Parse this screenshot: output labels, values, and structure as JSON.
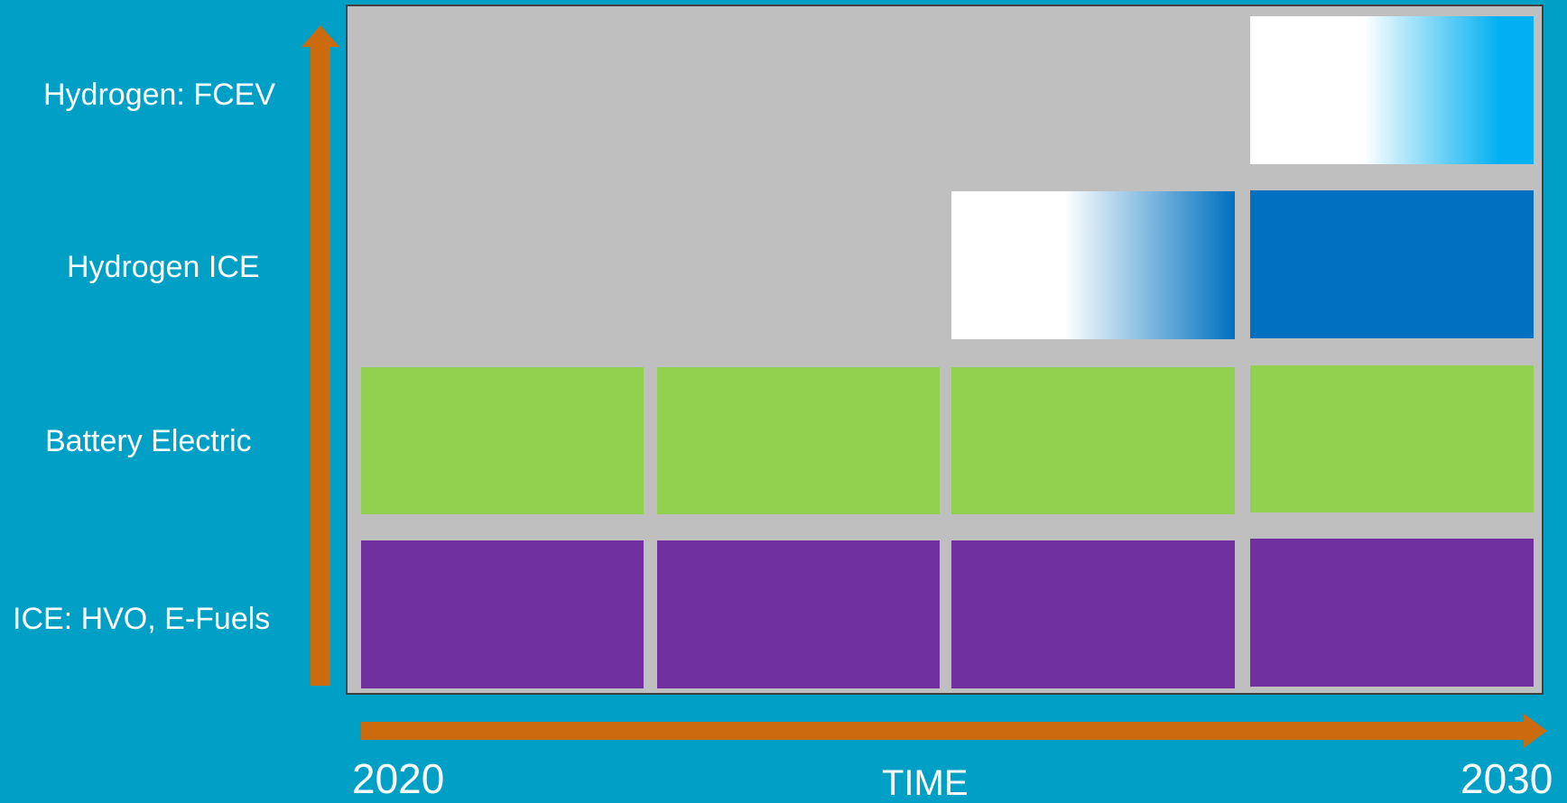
{
  "rows": [
    {
      "label": "Hydrogen: FCEV"
    },
    {
      "label": "Hydrogen ICE"
    },
    {
      "label": "Battery Electric"
    },
    {
      "label": "ICE: HVO, E-Fuels"
    }
  ],
  "x_axis": {
    "start_label": "2020",
    "end_label": "2030",
    "title": "TIME"
  },
  "colors": {
    "background": "#00A0C6",
    "arrow": "#CC6A0E",
    "grid": "#BFBFBF",
    "battery_electric": "#92D050",
    "ice_fuels": "#7030A0",
    "hydrogen_ice": "#0070C0",
    "hydrogen_fcev": "#00B0F0"
  },
  "periods": 4,
  "cells": {
    "hydrogen_fcev": [
      "empty",
      "empty",
      "empty",
      "emerging"
    ],
    "hydrogen_ice": [
      "empty",
      "empty",
      "emerging",
      "established"
    ],
    "battery_electric": [
      "established",
      "established",
      "established",
      "established"
    ],
    "ice_fuels": [
      "established",
      "established",
      "established",
      "established"
    ]
  }
}
